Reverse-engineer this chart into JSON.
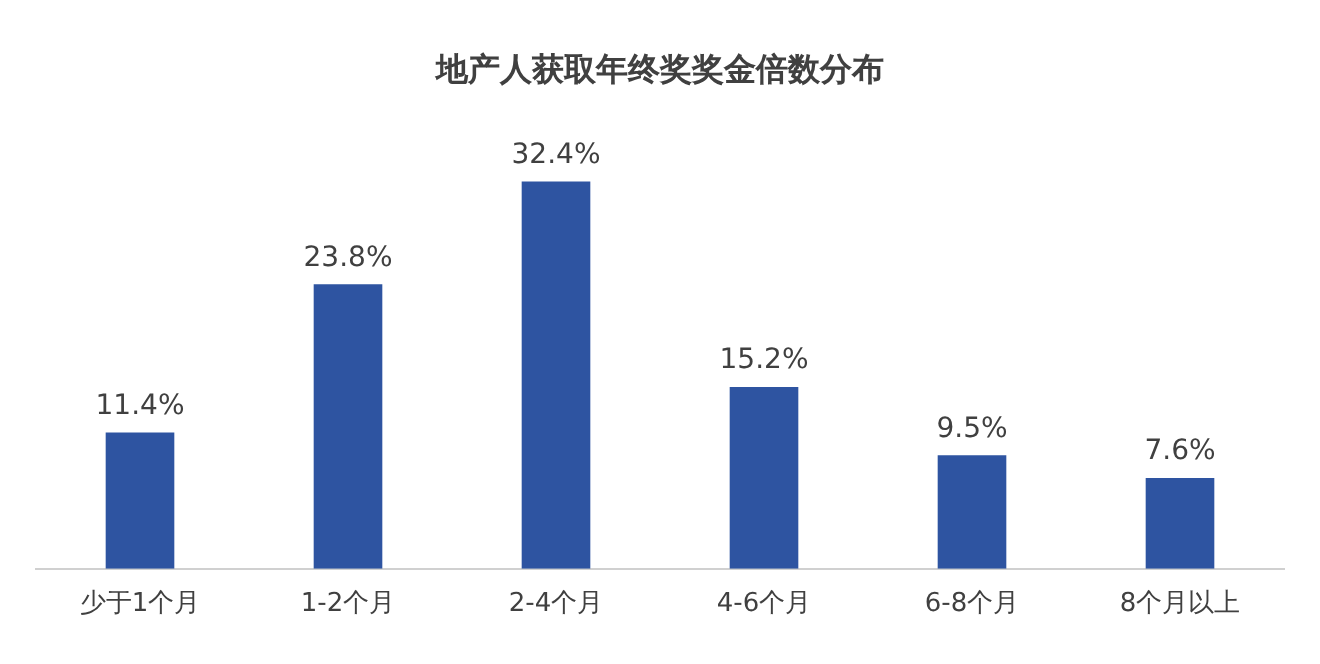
{
  "chart_data": {
    "type": "bar",
    "title": "地产人获取年终奖奖金倍数分布",
    "categories": [
      "少于1个月",
      "1-2个月",
      "2-4个月",
      "4-6个月",
      "6-8个月",
      "8个月以上"
    ],
    "values": [
      11.4,
      23.8,
      32.4,
      15.2,
      9.5,
      7.6
    ],
    "value_labels": [
      "11.4%",
      "23.8%",
      "32.4%",
      "15.2%",
      "9.5%",
      "7.6%"
    ],
    "color": "#2e54a1",
    "grid": false,
    "legend": false,
    "tick_labels": "x"
  }
}
